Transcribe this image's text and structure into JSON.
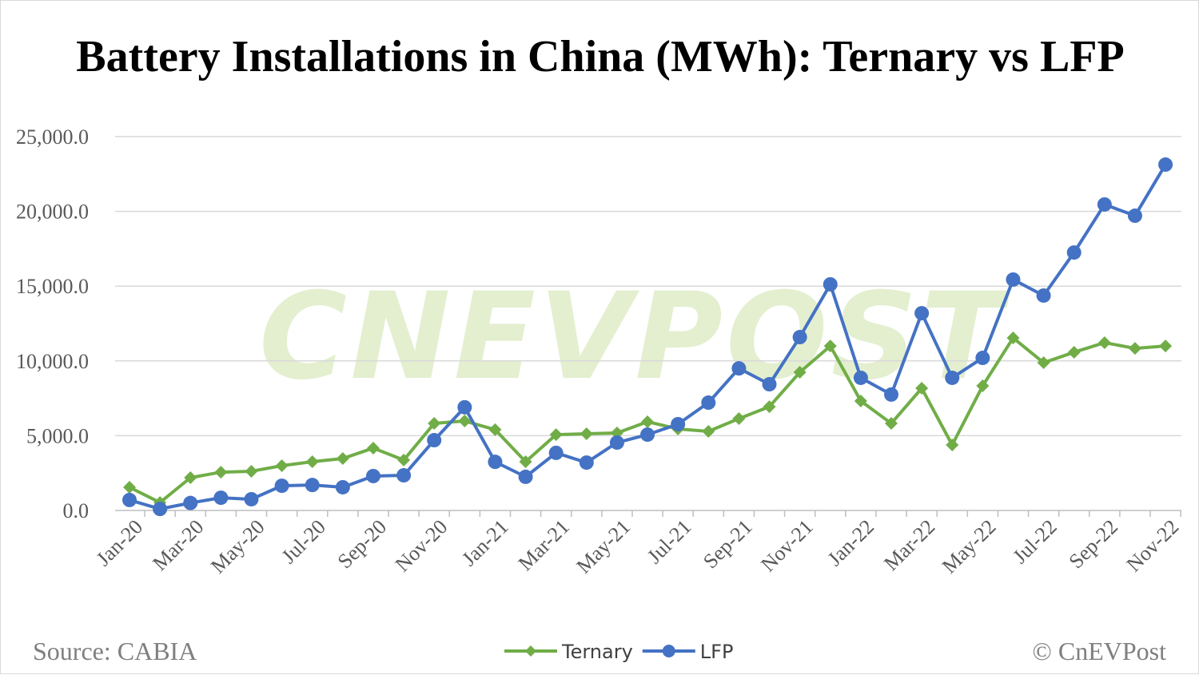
{
  "chart_data": {
    "type": "line",
    "title": "Battery Installations in China (MWh): Ternary vs LFP",
    "xlabel": "",
    "ylabel": "",
    "ylim": [
      0,
      25000
    ],
    "yticks": [
      "0.0",
      "5,000.0",
      "10,000.0",
      "15,000.0",
      "20,000.0",
      "25,000.0"
    ],
    "grid": true,
    "legend_position": "bottom",
    "categories": [
      "Jan-20",
      "Feb-20",
      "Mar-20",
      "Apr-20",
      "May-20",
      "Jun-20",
      "Jul-20",
      "Aug-20",
      "Sep-20",
      "Oct-20",
      "Nov-20",
      "Dec-20",
      "Jan-21",
      "Feb-21",
      "Mar-21",
      "Apr-21",
      "May-21",
      "Jun-21",
      "Jul-21",
      "Aug-21",
      "Sep-21",
      "Oct-21",
      "Nov-21",
      "Dec-21",
      "Jan-22",
      "Feb-22",
      "Mar-22",
      "Apr-22",
      "May-22",
      "Jun-22",
      "Jul-22",
      "Aug-22",
      "Sep-22",
      "Oct-22",
      "Nov-22"
    ],
    "xtick_labels": [
      "Jan-20",
      "Mar-20",
      "May-20",
      "Jul-20",
      "Sep-20",
      "Nov-20",
      "Jan-21",
      "Mar-21",
      "May-21",
      "Jul-21",
      "Sep-21",
      "Nov-21",
      "Jan-22",
      "Mar-22",
      "May-22",
      "Jul-22",
      "Sep-22",
      "Nov-22"
    ],
    "series": [
      {
        "name": "Ternary",
        "color": "#70ad47",
        "marker": "diamond",
        "values": [
          1550,
          530,
          2190,
          2560,
          2620,
          2990,
          3260,
          3470,
          4170,
          3370,
          5820,
          5980,
          5400,
          3260,
          5070,
          5130,
          5180,
          5930,
          5450,
          5290,
          6140,
          6940,
          9240,
          11000,
          7320,
          5820,
          8170,
          4380,
          8330,
          11540,
          9880,
          10580,
          11220,
          10840,
          11000
        ]
      },
      {
        "name": "LFP",
        "color": "#4472c4",
        "marker": "circle",
        "values": [
          700,
          100,
          500,
          850,
          750,
          1650,
          1700,
          1550,
          2300,
          2350,
          4700,
          6900,
          3250,
          2250,
          3850,
          3200,
          4540,
          5070,
          5770,
          7210,
          9500,
          8440,
          11590,
          15120,
          8870,
          7750,
          13190,
          8870,
          10200,
          15440,
          14370,
          17250,
          20460,
          19710,
          23130
        ]
      }
    ]
  },
  "footer": {
    "source": "Source: CABIA",
    "credit": "© CnEVPost"
  },
  "watermark": "CNEVPOST"
}
